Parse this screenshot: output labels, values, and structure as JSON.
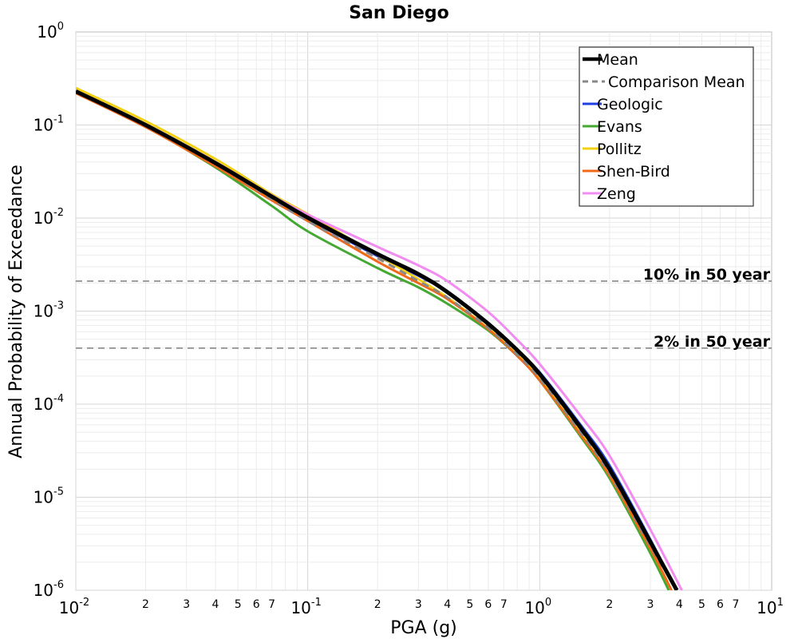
{
  "chart_data": {
    "type": "line",
    "title": "San Diego",
    "xlabel": "PGA (g)",
    "ylabel": "Annual Probability of Exceedance",
    "x_scale": "log",
    "y_scale": "log",
    "xlim": [
      0.01,
      10
    ],
    "ylim": [
      1e-06,
      1
    ],
    "grid": true,
    "legend_position": "top-right",
    "x_ticks": [
      {
        "value": 0.01,
        "base": "10",
        "exp": "-2"
      },
      {
        "value": 0.1,
        "base": "10",
        "exp": "-1"
      },
      {
        "value": 1,
        "base": "10",
        "exp": "0"
      },
      {
        "value": 10,
        "base": "10",
        "exp": "1"
      }
    ],
    "x_minor_labels": [
      "2",
      "3",
      "4",
      "5",
      "6",
      "7"
    ],
    "y_ticks": [
      {
        "value": 1,
        "base": "10",
        "exp": "0"
      },
      {
        "value": 0.1,
        "base": "10",
        "exp": "-1"
      },
      {
        "value": 0.01,
        "base": "10",
        "exp": "-2"
      },
      {
        "value": 0.001,
        "base": "10",
        "exp": "-3"
      },
      {
        "value": 0.0001,
        "base": "10",
        "exp": "-4"
      },
      {
        "value": 1e-05,
        "base": "10",
        "exp": "-5"
      },
      {
        "value": 1e-06,
        "base": "10",
        "exp": "-6"
      }
    ],
    "annotations": [
      {
        "text": "10% in 50 year",
        "y": 0.0021,
        "color": "#888888"
      },
      {
        "text": "2% in 50 year",
        "y": 0.0004,
        "color": "#888888"
      }
    ],
    "series": [
      {
        "name": "Geologic",
        "color": "#1f3fe0",
        "width": 3,
        "dash": "",
        "x": [
          0.01,
          0.02,
          0.04,
          0.07,
          0.1,
          0.2,
          0.3,
          0.4,
          0.6,
          0.8,
          1.0,
          1.5,
          2.0,
          3.0,
          4.0
        ],
        "y": [
          0.23,
          0.1,
          0.039,
          0.017,
          0.0099,
          0.0039,
          0.0024,
          0.0016,
          0.00075,
          0.00038,
          0.00022,
          6e-05,
          2.2e-05,
          3.5e-06,
          8.5e-07
        ]
      },
      {
        "name": "Evans",
        "color": "#44a832",
        "width": 3,
        "dash": "",
        "x": [
          0.01,
          0.02,
          0.04,
          0.07,
          0.1,
          0.2,
          0.3,
          0.4,
          0.6,
          0.8,
          1.0,
          1.5,
          2.0,
          3.0,
          3.6
        ],
        "y": [
          0.23,
          0.097,
          0.035,
          0.0135,
          0.0072,
          0.0029,
          0.0018,
          0.0012,
          0.00062,
          0.00033,
          0.00018,
          4.5e-05,
          1.6e-05,
          2.5e-06,
          1e-06
        ]
      },
      {
        "name": "Pollitz",
        "color": "#f2d012",
        "width": 3,
        "dash": "",
        "x": [
          0.01,
          0.02,
          0.04,
          0.07,
          0.1,
          0.2,
          0.3,
          0.4,
          0.6,
          0.8,
          1.0,
          1.5,
          2.0,
          3.0,
          3.7
        ],
        "y": [
          0.25,
          0.11,
          0.043,
          0.018,
          0.011,
          0.004,
          0.0022,
          0.0014,
          0.00065,
          0.00034,
          0.00019,
          4.9e-05,
          1.7e-05,
          2.8e-06,
          1e-06
        ]
      },
      {
        "name": "Shen-Bird",
        "color": "#f06818",
        "width": 3,
        "dash": "",
        "x": [
          0.01,
          0.02,
          0.04,
          0.07,
          0.1,
          0.2,
          0.3,
          0.4,
          0.6,
          0.8,
          1.0,
          1.5,
          2.0,
          3.0,
          3.7
        ],
        "y": [
          0.22,
          0.095,
          0.036,
          0.0155,
          0.0093,
          0.0034,
          0.002,
          0.00135,
          0.00064,
          0.00033,
          0.00018,
          4.7e-05,
          1.7e-05,
          2.8e-06,
          1e-06
        ]
      },
      {
        "name": "Zeng",
        "color": "#f28cf0",
        "width": 3,
        "dash": "",
        "x": [
          0.01,
          0.02,
          0.04,
          0.07,
          0.1,
          0.2,
          0.3,
          0.4,
          0.6,
          0.8,
          1.0,
          1.5,
          2.0,
          3.0,
          4.1
        ],
        "y": [
          0.235,
          0.102,
          0.04,
          0.0175,
          0.0109,
          0.0049,
          0.0031,
          0.0021,
          0.00098,
          0.00049,
          0.00027,
          7.5e-05,
          2.8e-05,
          4.5e-06,
          1e-06
        ]
      },
      {
        "name": "Comparison Mean",
        "color": "#888888",
        "width": 3,
        "dash": "9,7",
        "x": [
          0.01,
          0.02,
          0.04,
          0.07,
          0.1,
          0.2,
          0.3,
          0.4,
          0.6,
          0.8,
          1.0,
          1.5,
          2.0,
          3.0,
          3.9
        ],
        "y": [
          0.228,
          0.099,
          0.038,
          0.016,
          0.0093,
          0.0037,
          0.0021,
          0.0014,
          0.00066,
          0.00034,
          0.00019,
          5e-05,
          1.8e-05,
          3e-06,
          1e-06
        ]
      },
      {
        "name": "Mean",
        "color": "#000000",
        "width": 5,
        "dash": "",
        "x": [
          0.01,
          0.02,
          0.04,
          0.07,
          0.1,
          0.2,
          0.3,
          0.4,
          0.6,
          0.8,
          1.0,
          1.5,
          2.0,
          3.0,
          3.9
        ],
        "y": [
          0.23,
          0.1,
          0.039,
          0.017,
          0.0101,
          0.0041,
          0.0025,
          0.0016,
          0.00073,
          0.00038,
          0.00021,
          5.6e-05,
          2e-05,
          3.3e-06,
          1e-06
        ]
      }
    ],
    "legend_order": [
      "Mean",
      "Comparison Mean",
      "Geologic",
      "Evans",
      "Pollitz",
      "Shen-Bird",
      "Zeng"
    ]
  }
}
